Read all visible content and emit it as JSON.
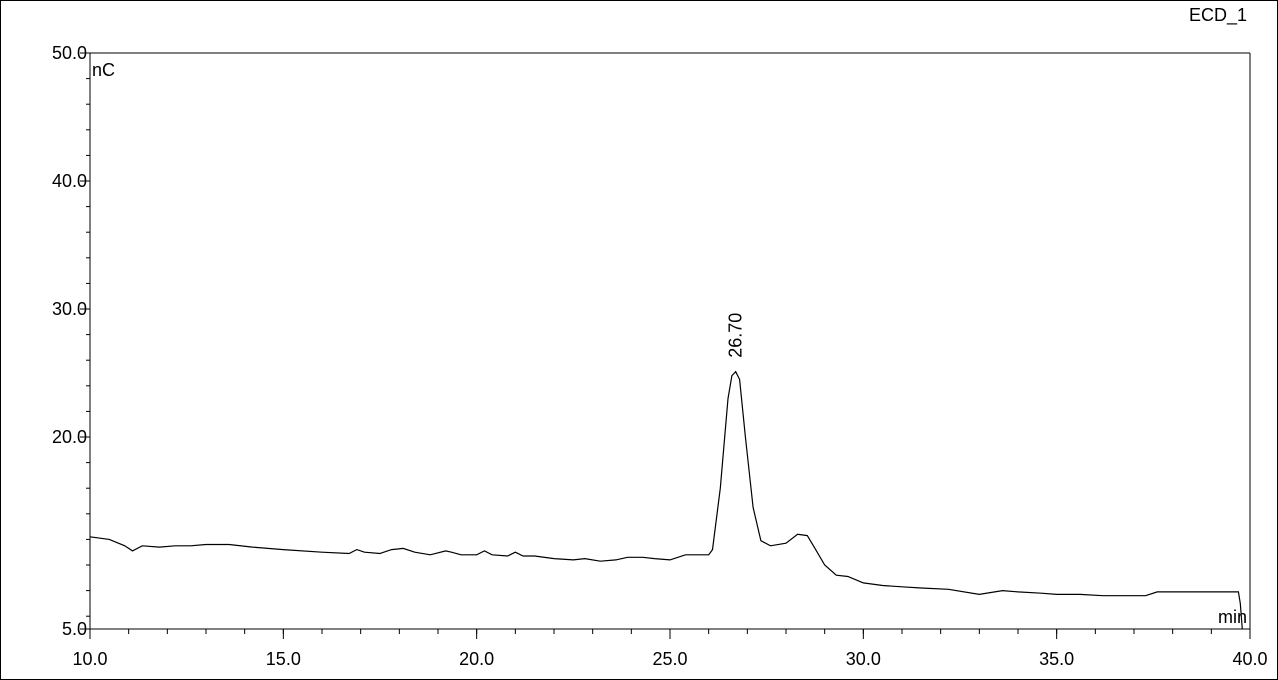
{
  "chart_data": {
    "type": "line",
    "channel": "ECD_1",
    "xlabel": "min",
    "ylabel": "nC",
    "xlim": [
      10.0,
      40.0
    ],
    "ylim": [
      5.0,
      50.0
    ],
    "x_ticks": [
      "10.0",
      "15.0",
      "20.0",
      "25.0",
      "30.0",
      "35.0",
      "40.0"
    ],
    "y_ticks": [
      "5.0",
      "20.0",
      "30.0",
      "40.0",
      "50.0"
    ],
    "x_tick_values": [
      10,
      15,
      20,
      25,
      30,
      35,
      40
    ],
    "y_tick_values": [
      5,
      20,
      30,
      40,
      50
    ],
    "peak_labels": [
      {
        "x": 26.7,
        "y": 25.1,
        "label": "26.70"
      }
    ],
    "series": [
      {
        "x": [
          10.0,
          10.5,
          10.9,
          11.1,
          11.35,
          11.8,
          12.2,
          12.6,
          13.0,
          13.6,
          14.2,
          15.0,
          16.0,
          16.7,
          16.9,
          17.1,
          17.5,
          17.8,
          18.1,
          18.4,
          18.8,
          19.2,
          19.35,
          19.6,
          20.0,
          20.2,
          20.4,
          20.8,
          21.0,
          21.2,
          21.5,
          22.0,
          22.5,
          22.8,
          23.2,
          23.6,
          23.9,
          24.3,
          24.6,
          25.0,
          25.4,
          26.0,
          26.1,
          26.3,
          26.5,
          26.6,
          26.7,
          26.8,
          26.95,
          27.15,
          27.35,
          27.6,
          28.0,
          28.3,
          28.55,
          28.75,
          29.0,
          29.3,
          29.6,
          30.0,
          30.5,
          31.0,
          31.5,
          32.2,
          33.0,
          33.6,
          34.0,
          34.6,
          35.0,
          35.6,
          36.2,
          36.8,
          37.3,
          37.6,
          38.0,
          38.5,
          39.0,
          39.5,
          39.7,
          39.75,
          39.8
        ],
        "y": [
          12.2,
          12.0,
          11.5,
          11.1,
          11.5,
          11.4,
          11.5,
          11.5,
          11.6,
          11.6,
          11.4,
          11.2,
          11.0,
          10.9,
          11.2,
          11.0,
          10.9,
          11.2,
          11.3,
          11.0,
          10.8,
          11.1,
          11.0,
          10.8,
          10.8,
          11.1,
          10.8,
          10.7,
          11.0,
          10.7,
          10.7,
          10.5,
          10.4,
          10.5,
          10.3,
          10.4,
          10.6,
          10.6,
          10.5,
          10.4,
          10.8,
          10.8,
          11.2,
          16.0,
          23.0,
          24.8,
          25.1,
          24.5,
          20.0,
          14.5,
          11.9,
          11.5,
          11.7,
          12.4,
          12.3,
          11.3,
          10.0,
          9.2,
          9.1,
          8.6,
          8.4,
          8.3,
          8.2,
          8.1,
          7.7,
          8.0,
          7.9,
          7.8,
          7.7,
          7.7,
          7.6,
          7.6,
          7.6,
          7.9,
          7.9,
          7.9,
          7.9,
          7.9,
          7.9,
          7.0,
          5.0
        ]
      }
    ],
    "grid": false,
    "legend": "none"
  }
}
